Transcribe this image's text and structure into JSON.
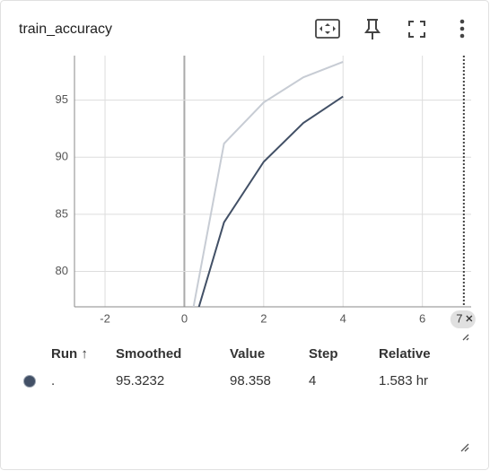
{
  "card": {
    "title": "train_accuracy"
  },
  "chart_data": {
    "type": "line",
    "x": [
      0,
      1,
      2,
      3,
      4
    ],
    "series": [
      {
        "color": "#c7ccd4",
        "values": [
          72.6,
          91.2,
          94.8,
          97.0,
          98.358
        ]
      },
      {
        "color": "#425066",
        "values": [
          72.6,
          84.3,
          89.6,
          93.0,
          95.3232
        ]
      }
    ],
    "xlim": [
      -2.77,
      7.23
    ],
    "xticks": [
      -2,
      0,
      2,
      4,
      6
    ],
    "ylim": [
      76.9,
      98.9
    ],
    "yticks": [
      80,
      85,
      90,
      95
    ],
    "grid": true,
    "cursor": {
      "x": 7
    }
  },
  "table": {
    "header": [
      "Run ↑",
      "Smoothed",
      "Value",
      "Step",
      "Relative"
    ],
    "rows": [
      [
        ".",
        "95.3232",
        "98.358",
        "4",
        "1.583 hr"
      ]
    ]
  }
}
